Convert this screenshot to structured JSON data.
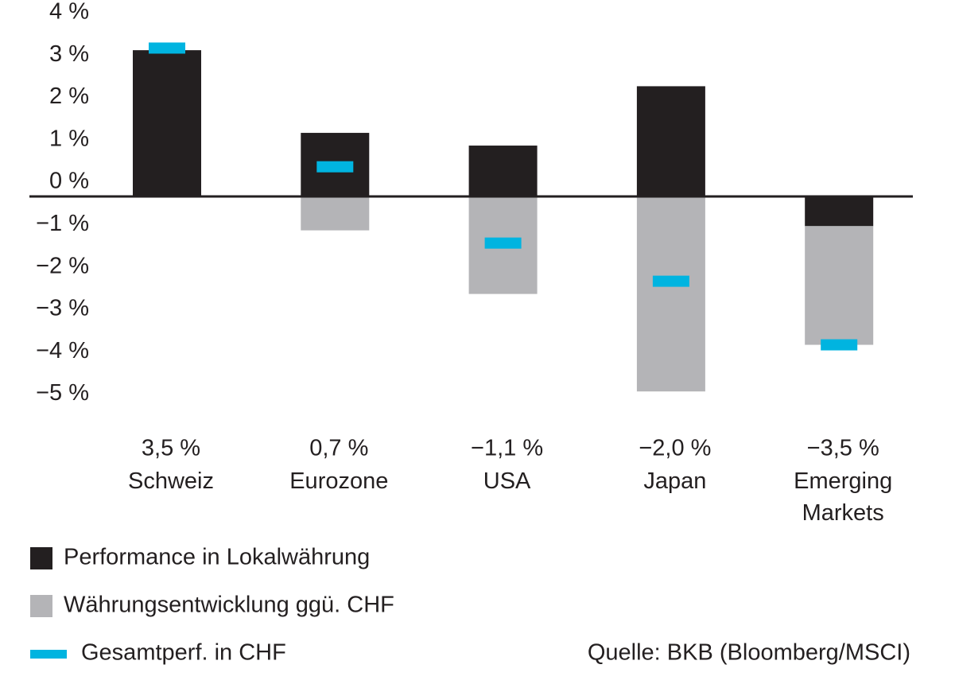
{
  "chart_data": {
    "type": "bar",
    "categories": [
      "Schweiz",
      "Eurozone",
      "USA",
      "Japan",
      "Emerging Markets"
    ],
    "series": [
      {
        "name": "Performance in Lokalwährung",
        "color": "#231f20",
        "values": [
          3.45,
          1.5,
          1.2,
          2.6,
          -0.7
        ]
      },
      {
        "name": "Währungsentwicklung ggü. CHF",
        "color": "#b4b4b7",
        "values": [
          0,
          -0.8,
          -2.3,
          -4.6,
          -2.8
        ]
      },
      {
        "name": "Gesamtperf. in CHF",
        "color": "#00b4e0",
        "values": [
          3.5,
          0.7,
          -1.1,
          -2.0,
          -3.5
        ],
        "value_labels": [
          "3,5 %",
          "0,7 %",
          "−1,1 %",
          "−2,0 %",
          "−3,5 %"
        ]
      }
    ],
    "ylim": [
      -5,
      4
    ],
    "yticks": [
      {
        "value": 4,
        "label": "4 %"
      },
      {
        "value": 3,
        "label": "3 %"
      },
      {
        "value": 2,
        "label": "2 %"
      },
      {
        "value": 1,
        "label": "1 %"
      },
      {
        "value": 0,
        "label": "0 %"
      },
      {
        "value": -1,
        "label": "−1 %"
      },
      {
        "value": -2,
        "label": "−2 %"
      },
      {
        "value": -3,
        "label": "−3 %"
      },
      {
        "value": -4,
        "label": "−4 %"
      },
      {
        "value": -5,
        "label": "−5 %"
      }
    ],
    "source": "Quelle: BKB (Bloomberg/MSCI)"
  }
}
